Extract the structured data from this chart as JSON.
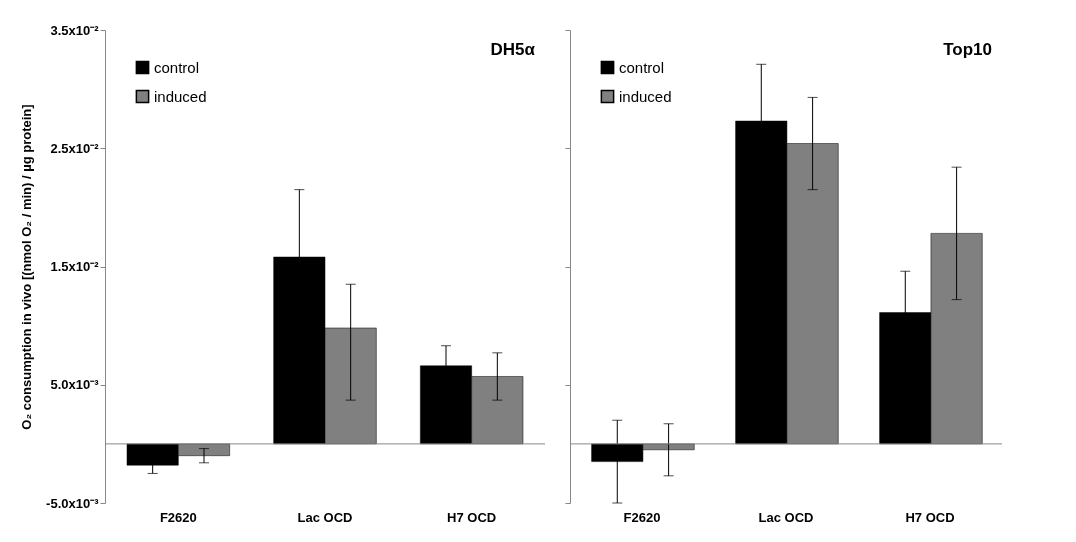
{
  "chart_data": [
    {
      "type": "bar",
      "title": "DH5α",
      "ylabel": "O₂ consumption in vivo [(nmol O₂ / min) / µg protein]",
      "categories": [
        "F2620",
        "Lac OCD",
        "H7 OCD"
      ],
      "series": [
        {
          "name": "control",
          "color": "#000000",
          "values": [
            -0.0018,
            0.0158,
            0.0066
          ],
          "errors": [
            0.0007,
            0.0057,
            0.0017
          ]
        },
        {
          "name": "induced",
          "color": "#808080",
          "values": [
            -0.001,
            0.0098,
            0.0057
          ],
          "errors": [
            0.0006,
            [
              0.0037,
              0.0135
            ],
            0.002
          ]
        }
      ],
      "ylim": [
        -0.005,
        0.035
      ],
      "yticks": [
        {
          "value": -0.005,
          "label": "-5.0x10⁻³"
        },
        {
          "value": 0.005,
          "label": "5.0x10⁻³"
        },
        {
          "value": 0.015,
          "label": "1.5x10⁻²"
        },
        {
          "value": 0.025,
          "label": "2.5x10⁻²"
        },
        {
          "value": 0.035,
          "label": "3.5x10⁻²"
        }
      ],
      "ref_lines": [
        {
          "axis": "y",
          "value": 0
        }
      ],
      "legend": "top left",
      "grid": false
    },
    {
      "type": "bar",
      "title": "Top10",
      "categories": [
        "F2620",
        "Lac OCD",
        "H7 OCD"
      ],
      "series": [
        {
          "name": "control",
          "color": "#000000",
          "values": [
            -0.0015,
            0.0273,
            0.0111
          ],
          "errors": [
            0.0035,
            0.0048,
            0.0035
          ]
        },
        {
          "name": "induced",
          "color": "#808080",
          "values": [
            -0.0005,
            0.0254,
            0.0178
          ],
          "errors": [
            0.0022,
            0.0039,
            0.0056
          ]
        }
      ],
      "ylim": [
        -0.005,
        0.035
      ],
      "yticks": [
        {
          "value": -0.005,
          "label": null
        },
        {
          "value": 0.005,
          "label": null
        },
        {
          "value": 0.015,
          "label": null
        },
        {
          "value": 0.025,
          "label": null
        },
        {
          "value": 0.035,
          "label": null
        }
      ],
      "ref_lines": [
        {
          "axis": "y",
          "value": 0
        }
      ],
      "legend": "top left",
      "grid": false,
      "tick_labels": "x"
    }
  ]
}
